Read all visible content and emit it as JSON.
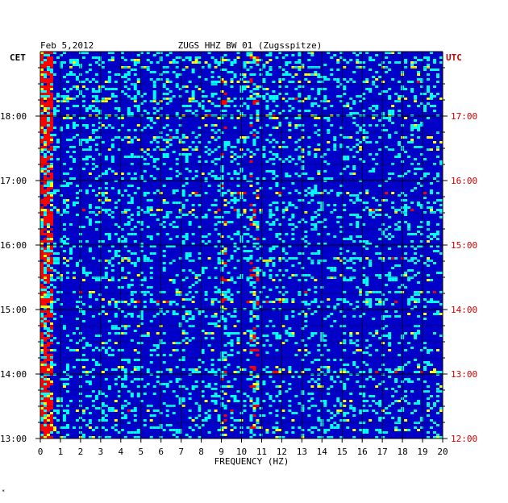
{
  "chart_data": {
    "type": "heatmap",
    "title": "ZUGS HHZ BW 01 (Zugsspitze)",
    "date": "Feb 5,2012",
    "xlabel": "FREQUENCY (HZ)",
    "left_axis_label": "CET",
    "right_axis_label": "UTC",
    "xlim": [
      0,
      20
    ],
    "x_ticks": [
      "0",
      "1",
      "2",
      "3",
      "4",
      "5",
      "6",
      "7",
      "8",
      "9",
      "10",
      "11",
      "12",
      "13",
      "14",
      "15",
      "16",
      "17",
      "18",
      "19",
      "20"
    ],
    "y_ticks_cet": [
      "18:00",
      "17:00",
      "16:00",
      "15:00",
      "14:00",
      "13:00"
    ],
    "y_ticks_utc": [
      "17:00",
      "16:00",
      "15:00",
      "14:00",
      "13:00",
      "12:00"
    ],
    "grid": true,
    "colormap": [
      "#00008f",
      "#0000ff",
      "#00ffff",
      "#ffff00",
      "#ff0000"
    ],
    "label_color_utc": "#cc0000",
    "prominent_frequencies_hz": [
      0.4,
      9.1,
      10.7
    ],
    "notes_mark": "*"
  }
}
